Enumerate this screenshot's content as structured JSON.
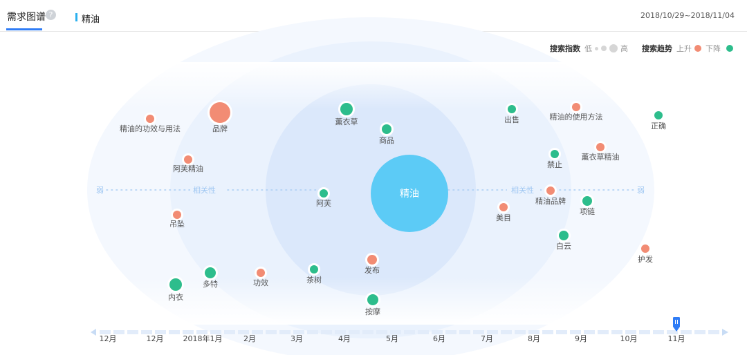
{
  "header": {
    "tab_title": "需求图谱",
    "keyword": "精油",
    "date_range": "2018/10/29~2018/11/04"
  },
  "legend": {
    "search_index_label": "搜索指数",
    "low": "低",
    "high": "高",
    "trend_label": "搜索趋势",
    "up": "上升",
    "down": "下降"
  },
  "graph": {
    "center": "精油",
    "axis_weak_left": "弱",
    "axis_weak_right": "弱",
    "axis_relevance_left": "相关性",
    "axis_relevance_right": "相关性",
    "nodes": [
      {
        "label": "精油的功效与用法",
        "trend": "up"
      },
      {
        "label": "品牌",
        "trend": "up"
      },
      {
        "label": "阿芙精油",
        "trend": "up"
      },
      {
        "label": "吊坠",
        "trend": "up"
      },
      {
        "label": "薰衣草",
        "trend": "down"
      },
      {
        "label": "商品",
        "trend": "down"
      },
      {
        "label": "阿芙",
        "trend": "down"
      },
      {
        "label": "出售",
        "trend": "down"
      },
      {
        "label": "精油的使用方法",
        "trend": "up"
      },
      {
        "label": "正确",
        "trend": "down"
      },
      {
        "label": "禁止",
        "trend": "down"
      },
      {
        "label": "薰衣草精油",
        "trend": "up"
      },
      {
        "label": "精油品牌",
        "trend": "up"
      },
      {
        "label": "项链",
        "trend": "down"
      },
      {
        "label": "美目",
        "trend": "up"
      },
      {
        "label": "白云",
        "trend": "down"
      },
      {
        "label": "护发",
        "trend": "up"
      },
      {
        "label": "内衣",
        "trend": "down"
      },
      {
        "label": "多特",
        "trend": "down"
      },
      {
        "label": "功效",
        "trend": "up"
      },
      {
        "label": "茶树",
        "trend": "down"
      },
      {
        "label": "发布",
        "trend": "up"
      },
      {
        "label": "按摩",
        "trend": "down"
      }
    ]
  },
  "timeline": {
    "months": [
      "12月",
      "12月",
      "2018年1月",
      "2月",
      "3月",
      "4月",
      "5月",
      "6月",
      "7月",
      "8月",
      "9月",
      "10月",
      "11月"
    ]
  },
  "colors": {
    "up": "#f28c74",
    "down": "#2dbd8c",
    "center": "#5ccbf6",
    "accent": "#2f7cf6"
  }
}
